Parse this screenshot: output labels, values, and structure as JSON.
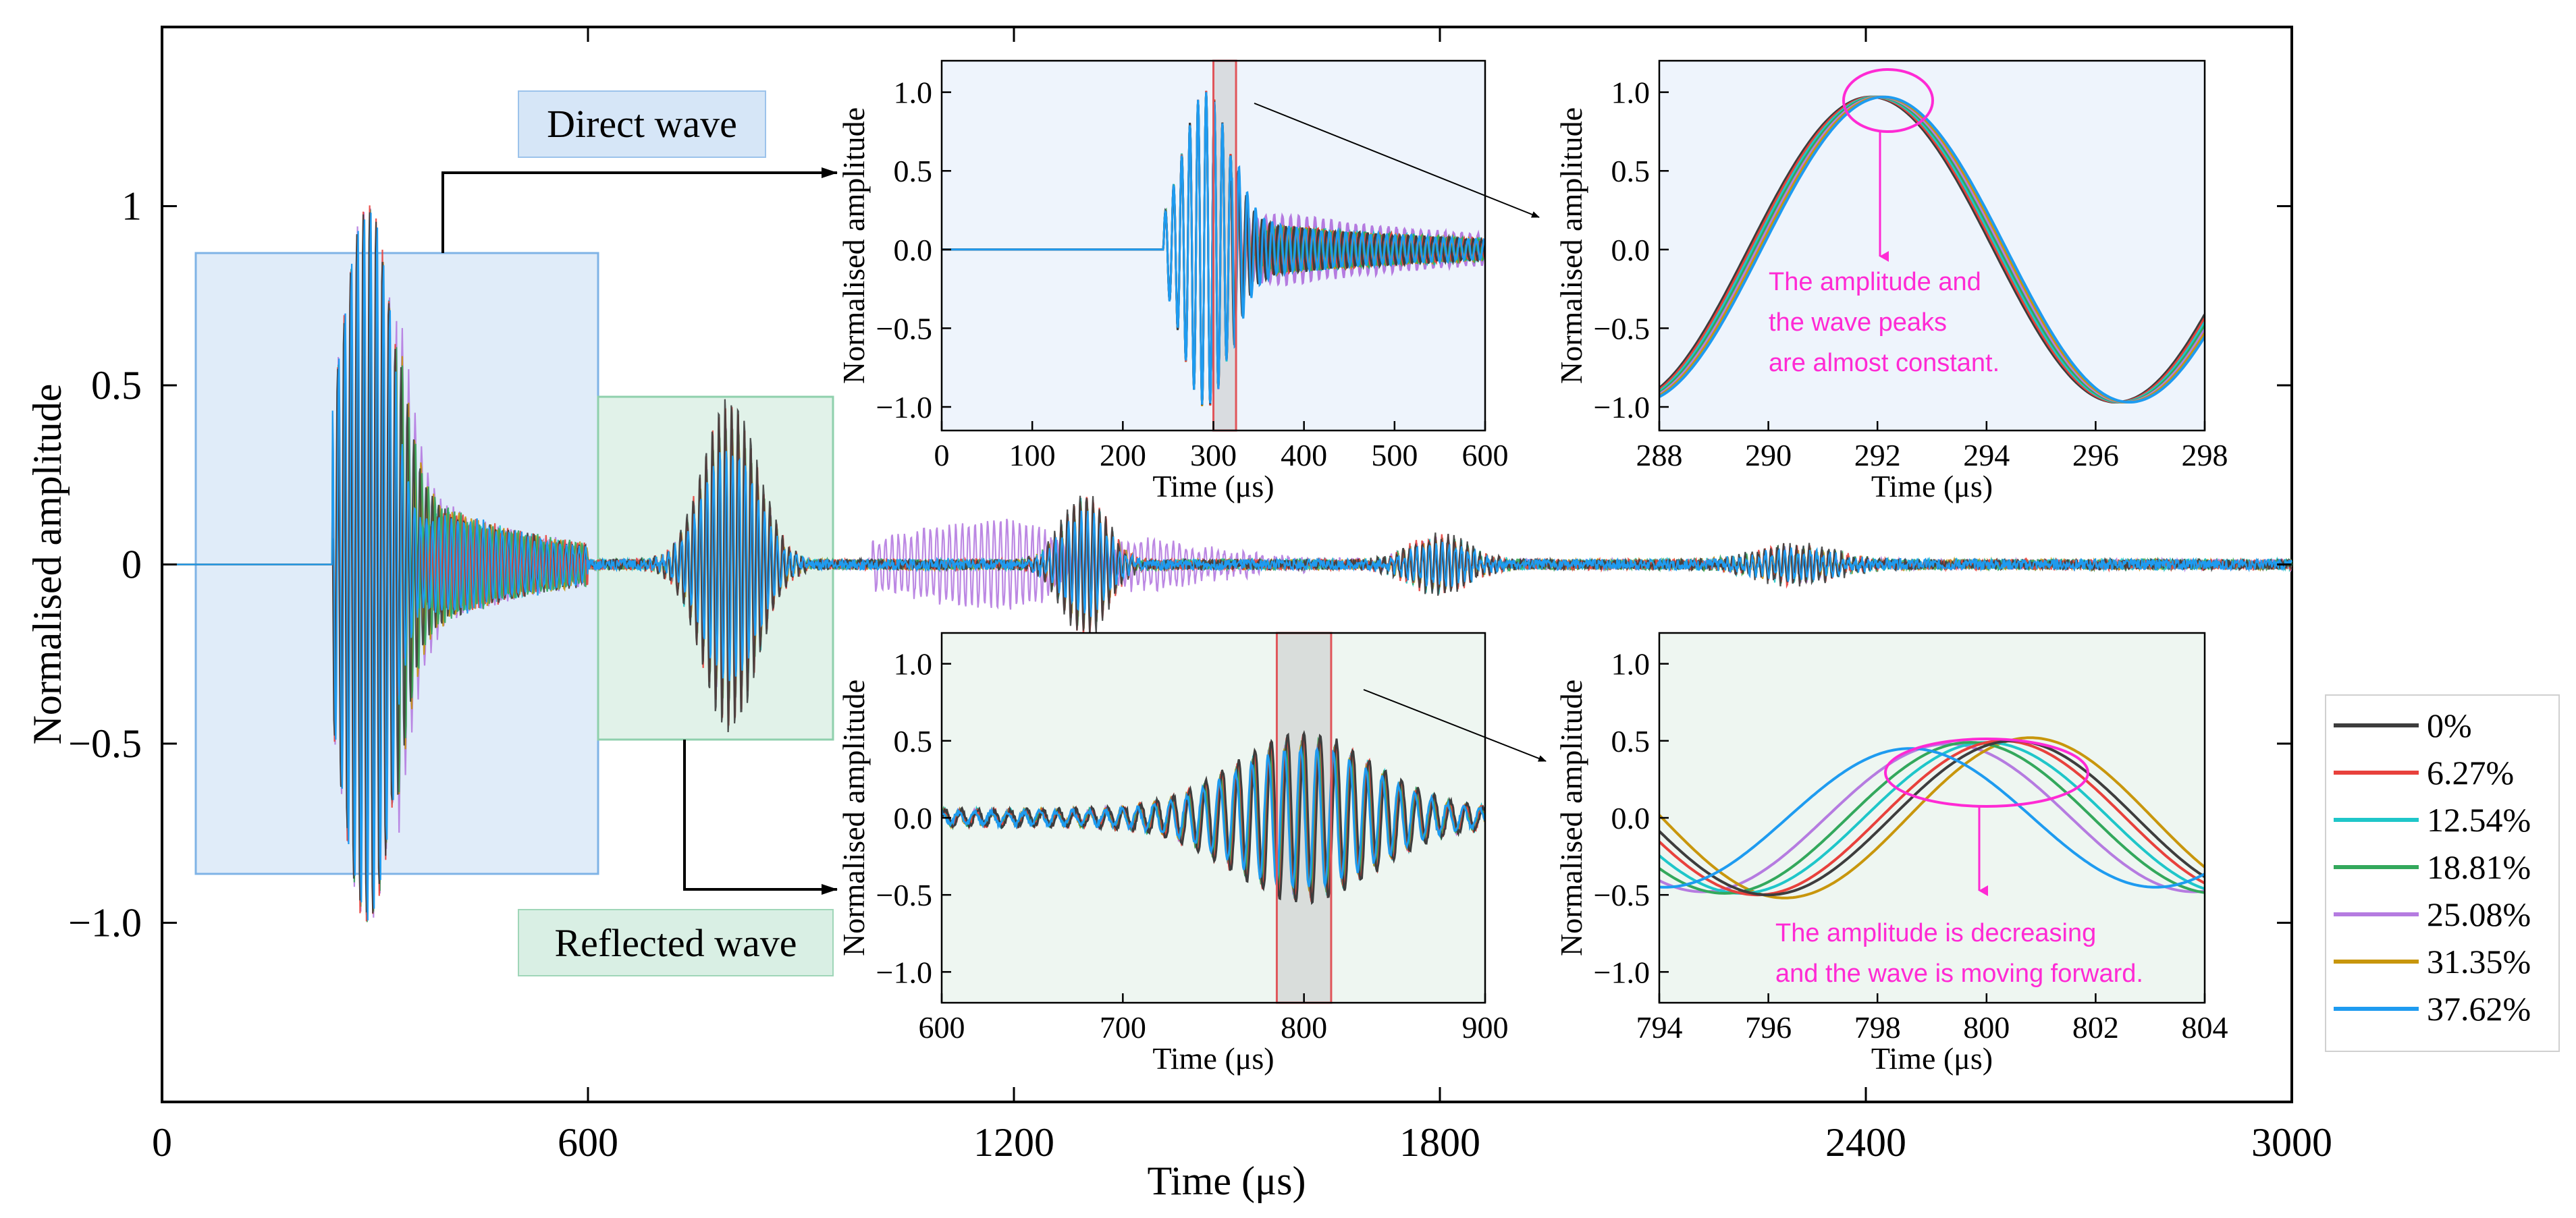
{
  "colors": {
    "s0": "#3d3d3d",
    "s1": "#e8413c",
    "s2": "#1fc6c9",
    "s3": "#33a85c",
    "s4": "#b57be0",
    "s5": "#c8960c",
    "s6": "#1e9bf0",
    "direct_bg": "#d6e6f7",
    "reflected_bg": "#d9efe4",
    "highlight": "#e0555a",
    "annotation": "#ff2ad4"
  },
  "chart_data": {
    "type": "line",
    "title": "",
    "xlabel": "Time (μs)",
    "ylabel": "Normalised amplitude",
    "xlim": [
      0,
      3000
    ],
    "ylim": [
      -1.5,
      1.5
    ],
    "xticks": [
      "0",
      "600",
      "1200",
      "1800",
      "2400",
      "3000"
    ],
    "yticks": [
      "1",
      "0.5",
      "0",
      "−0.5",
      "−1.0"
    ],
    "series": [
      {
        "name": "0%"
      },
      {
        "name": "6.27%"
      },
      {
        "name": "12.54%"
      },
      {
        "name": "18.81%"
      },
      {
        "name": "25.08%"
      },
      {
        "name": "31.35%"
      },
      {
        "name": "37.62%"
      }
    ],
    "packets": [
      {
        "center": 290,
        "amplitude": 1.0,
        "width": 55
      },
      {
        "center": 800,
        "amplitude": 0.47,
        "width": 55
      },
      {
        "center": 1300,
        "amplitude": 0.2,
        "width": 45
      },
      {
        "center": 1800,
        "amplitude": 0.08,
        "width": 60
      },
      {
        "center": 2300,
        "amplitude": 0.05,
        "width": 80
      }
    ],
    "regions": {
      "direct": "Direct wave",
      "reflected": "Reflected wave"
    },
    "insets": [
      {
        "id": "direct_full",
        "xlabel": "Time (μs)",
        "ylabel": "Normalised amplitude",
        "xlim": [
          0,
          600
        ],
        "ylim": [
          -1.15,
          1.2
        ],
        "xticks": [
          "0",
          "100",
          "200",
          "300",
          "400",
          "500",
          "600"
        ],
        "yticks": [
          "1.0",
          "0.5",
          "0.0",
          "−0.5",
          "−1.0"
        ],
        "highlight": [
          300,
          325
        ]
      },
      {
        "id": "direct_zoom",
        "xlabel": "Time (μs)",
        "ylabel": "Normalised amplitude",
        "xlim": [
          288,
          298
        ],
        "ylim": [
          -1.15,
          1.2
        ],
        "xticks": [
          "288",
          "290",
          "292",
          "294",
          "296",
          "298"
        ],
        "yticks": [
          "1.0",
          "0.5",
          "0.0",
          "−0.5",
          "−1.0"
        ],
        "peak_time": 292.0,
        "peak_amplitude": 0.97,
        "period": 9.0
      },
      {
        "id": "reflected_full",
        "xlabel": "Time (μs)",
        "ylabel": "Normalised amplitude",
        "xlim": [
          600,
          900
        ],
        "ylim": [
          -1.2,
          1.2
        ],
        "xticks": [
          "600",
          "700",
          "800",
          "900"
        ],
        "yticks": [
          "1.0",
          "0.5",
          "0.0",
          "−0.5",
          "−1.0"
        ],
        "highlight": [
          785,
          815
        ]
      },
      {
        "id": "reflected_zoom",
        "xlabel": "Time (μs)",
        "ylabel": "Normalised amplitude",
        "xlim": [
          794,
          804
        ],
        "ylim": [
          -1.2,
          1.2
        ],
        "xticks": [
          "794",
          "796",
          "798",
          "800",
          "802",
          "804"
        ],
        "yticks": [
          "1.0",
          "0.5",
          "0.0",
          "−0.5",
          "−1.0"
        ],
        "peak_times": [
          800.5,
          800.3,
          800.0,
          799.7,
          799.3,
          800.8,
          798.6
        ],
        "peak_amplitudes": [
          0.5,
          0.5,
          0.49,
          0.49,
          0.48,
          0.52,
          0.45
        ],
        "period": 9.0
      }
    ],
    "annotations": {
      "direct": [
        "The amplitude and",
        "the wave peaks",
        "are almost constant."
      ],
      "reflected": [
        "The amplitude is decreasing",
        "and the wave is moving forward."
      ]
    }
  }
}
